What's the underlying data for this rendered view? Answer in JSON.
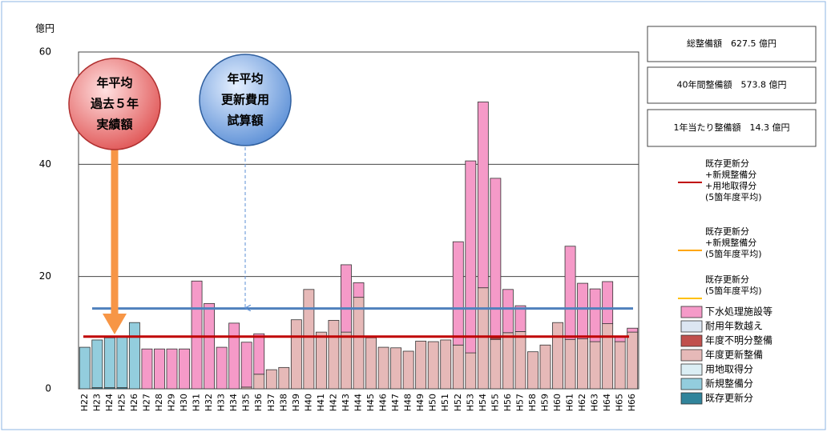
{
  "chart_data": {
    "type": "stacked_bar",
    "y_label": "億円",
    "ylim": [
      0,
      60
    ],
    "yticks": [
      0,
      20,
      40,
      60
    ],
    "grid": true,
    "categories": [
      "H22",
      "H23",
      "H24",
      "H25",
      "H26",
      "H27",
      "H28",
      "H29",
      "H30",
      "H31",
      "H32",
      "H33",
      "H34",
      "H35",
      "H36",
      "H37",
      "H38",
      "H39",
      "H40",
      "H41",
      "H42",
      "H43",
      "H44",
      "H45",
      "H46",
      "H47",
      "H48",
      "H49",
      "H50",
      "H51",
      "H52",
      "H53",
      "H54",
      "H55",
      "H56",
      "H57",
      "H58",
      "H59",
      "H60",
      "H61",
      "H62",
      "H63",
      "H64",
      "H65",
      "H66"
    ],
    "series": [
      {
        "name": "下水処理施設等",
        "color": "#f59ac8",
        "values": [
          0,
          0,
          0,
          0,
          0,
          7.1,
          7.1,
          7.1,
          7.1,
          19.2,
          15.2,
          7.4,
          11.7,
          8.0,
          7.2,
          0,
          0,
          0,
          0,
          0,
          0,
          12.0,
          2.6,
          0,
          0,
          0,
          0,
          0,
          0,
          0,
          18.4,
          34.2,
          33.1,
          28.4,
          7.7,
          4.6,
          0,
          0,
          0,
          16.6,
          9.9,
          9.4,
          7.5,
          1.0,
          0.7
        ]
      },
      {
        "name": "耐用年数越え",
        "color": "#dce6f2",
        "values": [
          0,
          0,
          0,
          0,
          0,
          0,
          0,
          0,
          0,
          0,
          0,
          0,
          0,
          0,
          0,
          0,
          0,
          0,
          0,
          0,
          0,
          0,
          0,
          0,
          0,
          0,
          0,
          0,
          0,
          0,
          0,
          0,
          0,
          0,
          0,
          0,
          0,
          0,
          0,
          0,
          0,
          0,
          0,
          0,
          0
        ]
      },
      {
        "name": "年度不明分整備",
        "color": "#c0504d",
        "values": [
          0,
          0,
          0,
          0,
          0,
          0,
          0,
          0,
          0,
          0,
          0,
          0,
          0,
          0,
          0,
          0,
          0,
          0,
          0,
          0,
          0,
          0,
          0,
          0,
          0,
          0,
          0,
          0,
          0,
          0,
          0,
          0,
          0,
          0.3,
          0,
          0,
          0,
          0,
          0,
          0,
          0,
          0,
          0,
          0,
          0
        ]
      },
      {
        "name": "年度更新整備",
        "color": "#e6b9b8",
        "values": [
          0,
          0,
          0,
          0,
          0,
          0,
          0,
          0,
          0,
          0,
          0,
          0,
          0,
          0.3,
          2.6,
          3.4,
          3.8,
          12.3,
          17.7,
          10.1,
          12.2,
          10.1,
          16.3,
          9.1,
          7.4,
          7.3,
          6.7,
          8.5,
          8.4,
          8.7,
          7.8,
          6.4,
          18.0,
          8.8,
          10.0,
          10.2,
          6.6,
          7.8,
          11.8,
          8.8,
          8.9,
          8.4,
          11.6,
          8.4,
          10.1
        ]
      },
      {
        "name": "用地取得分",
        "color": "#dbeef4",
        "values": [
          0,
          0,
          0,
          0,
          0,
          0,
          0,
          0,
          0,
          0,
          0,
          0,
          0,
          0,
          0,
          0,
          0,
          0,
          0,
          0,
          0,
          0,
          0,
          0,
          0,
          0,
          0,
          0,
          0,
          0,
          0,
          0,
          0,
          0,
          0,
          0,
          0,
          0,
          0,
          0,
          0,
          0,
          0,
          0,
          0
        ]
      },
      {
        "name": "新規整備分",
        "color": "#93cddd",
        "values": [
          7.4,
          8.5,
          8.9,
          9.2,
          11.8,
          0,
          0,
          0,
          0,
          0,
          0,
          0,
          0,
          0,
          0,
          0,
          0,
          0,
          0,
          0,
          0,
          0,
          0,
          0,
          0,
          0,
          0,
          0,
          0,
          0,
          0,
          0,
          0,
          0,
          0,
          0,
          0,
          0,
          0,
          0,
          0,
          0,
          0,
          0,
          0
        ]
      },
      {
        "name": "既存更新分",
        "color": "#31849b",
        "values": [
          0,
          0.2,
          0.2,
          0.2,
          0,
          0,
          0,
          0,
          0,
          0,
          0,
          0,
          0,
          0,
          0,
          0,
          0,
          0,
          0,
          0,
          0,
          0,
          0,
          0,
          0,
          0,
          0,
          0,
          0,
          0,
          0,
          0,
          0,
          0,
          0,
          0,
          0,
          0,
          0,
          0,
          0,
          0,
          0,
          0,
          0
        ]
      }
    ],
    "reference_lines": [
      {
        "value": 14.3,
        "color": "#4f81bd"
      },
      {
        "value": 9.3,
        "color": "#c00000"
      }
    ],
    "line_legend": [
      {
        "name": [
          "既存更新分",
          "+新規整備分",
          "+用地取得分",
          "(5箇年度平均)"
        ],
        "color": "#c00000"
      },
      {
        "name": [
          "既存更新分",
          "+新規整備分",
          "(5箇年度平均)"
        ],
        "color": "#ffa500"
      },
      {
        "name": [
          "既存更新分",
          "(5箇年度平均)"
        ],
        "color": "#ffc000"
      }
    ],
    "info_boxes": [
      "総整備額　627.5 億円",
      "40年間整備額　573.8 億円",
      "1年当たり整備額　14.3 億円"
    ],
    "annotations": [
      {
        "lines": [
          "年平均",
          "過去５年",
          "実績額"
        ],
        "color": "#e05555"
      },
      {
        "lines": [
          "年平均",
          "更新費用",
          "試算額"
        ],
        "color": "#5b8fd6"
      }
    ]
  }
}
